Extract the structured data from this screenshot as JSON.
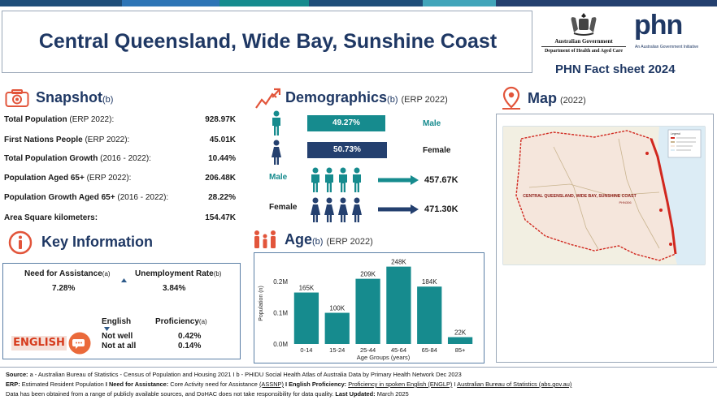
{
  "header": {
    "title": "Central Queensland, Wide Bay, Sunshine Coast",
    "gov_line1": "Australian Government",
    "gov_line2": "Department of Health and Aged Care",
    "phn_logo": "phn",
    "phn_sub": "An Australian Government Initiative",
    "factsheet": "PHN Fact sheet 2024"
  },
  "snapshot": {
    "title": "Snapshot",
    "sub": "(b)",
    "icon": "camera-icon",
    "rows": [
      {
        "label": "Total Population",
        "note": " (ERP 2022):",
        "value": "928.97K"
      },
      {
        "label": "First Nations People",
        "note": " (ERP 2022):",
        "value": "45.01K"
      },
      {
        "label": "Total Population Growth",
        "note": " (2016 - 2022):",
        "value": "10.44%"
      },
      {
        "label": "Population Aged 65+",
        "note": " (ERP 2022):",
        "value": "206.48K"
      },
      {
        "label": "Population Growth Aged 65+",
        "note": " (2016 - 2022):",
        "value": "28.22%"
      },
      {
        "label": "Area Square kilometers:",
        "note": "",
        "value": "154.47K"
      }
    ]
  },
  "demographics": {
    "title": "Demographics",
    "sub": "(b)",
    "note": "(ERP 2022)",
    "icon": "trend-line-icon",
    "male_pct": "49.27%",
    "female_pct": "50.73%",
    "male_label": "Male",
    "female_label": "Female",
    "male_count": "457.67K",
    "female_count": "471.30K",
    "male_pct_value": 49.27,
    "female_pct_value": 50.73,
    "male_color": "#168b8e",
    "female_color": "#24406f"
  },
  "key_info": {
    "title": "Key Information",
    "icon": "info-icon",
    "need_label": "Need for Assistance",
    "need_sub": "(a)",
    "need_value": "7.28%",
    "unemp_label": "Unemployment Rate",
    "unemp_sub": "(b)",
    "unemp_value": "3.84%",
    "english_badge": "ENGLISH",
    "english_label": "English",
    "proficiency_label": "Proficiency",
    "proficiency_sub": "(a)",
    "not_well_label": "Not well",
    "not_well_value": "0.42%",
    "not_at_all_label": "Not at all",
    "not_at_all_value": "0.14%"
  },
  "age": {
    "title": "Age",
    "sub": "(b)",
    "note": "(ERP 2022)",
    "icon": "family-icon"
  },
  "map": {
    "title": "Map",
    "note": "(2022)",
    "icon": "location-pin-icon",
    "region_label": "CENTRAL QUEENSLAND, WIDE BAY, SUNSHINE COAST",
    "region_label2": "PHN306",
    "legend_title": "Legend"
  },
  "chart_data": {
    "type": "bar",
    "categories": [
      "0-14",
      "15-24",
      "25-44",
      "45-64",
      "65-84",
      "85+"
    ],
    "values": [
      165000,
      100000,
      209000,
      248000,
      184000,
      22000
    ],
    "data_labels": [
      "165K",
      "100K",
      "209K",
      "248K",
      "184K",
      "22K"
    ],
    "yticks": [
      "0.0M",
      "0.1M",
      "0.2M"
    ],
    "ytick_values": [
      0,
      100000,
      200000
    ],
    "ylim": [
      0,
      260000
    ],
    "xlabel": "Age Groups (years)",
    "ylabel": "Population (n)",
    "bar_color": "#168b8e"
  },
  "footer": {
    "source_b": "Source:",
    "source_t": " a - Australian Bureau of Statistics - Census of Population and Housing 2021 I b - PHIDU Social Health Atlas of Australia Data by Primary Health Network Dec 2023",
    "erp_b": "ERP:",
    "erp_t": " Estimated Resident Population ",
    "need_b": "I Need for Assistance:",
    "need_t": " Core Activity need for Assistance ",
    "assnp": "(ASSNP)",
    "eng_b": " I English Proficiency:",
    "eng_t": " ",
    "engl_link": "Proficiency in spoken English (ENGLP)",
    "abs_t": " I ",
    "abs_link": "Australian Bureau of Statistics (abs.gov.au)",
    "disclaimer": "Data has been obtained from a range of publicly available sources, and DoHAC does not take responsibility for data quality. ",
    "updated_b": "Last Updated:",
    "updated_t": " March 2025"
  }
}
